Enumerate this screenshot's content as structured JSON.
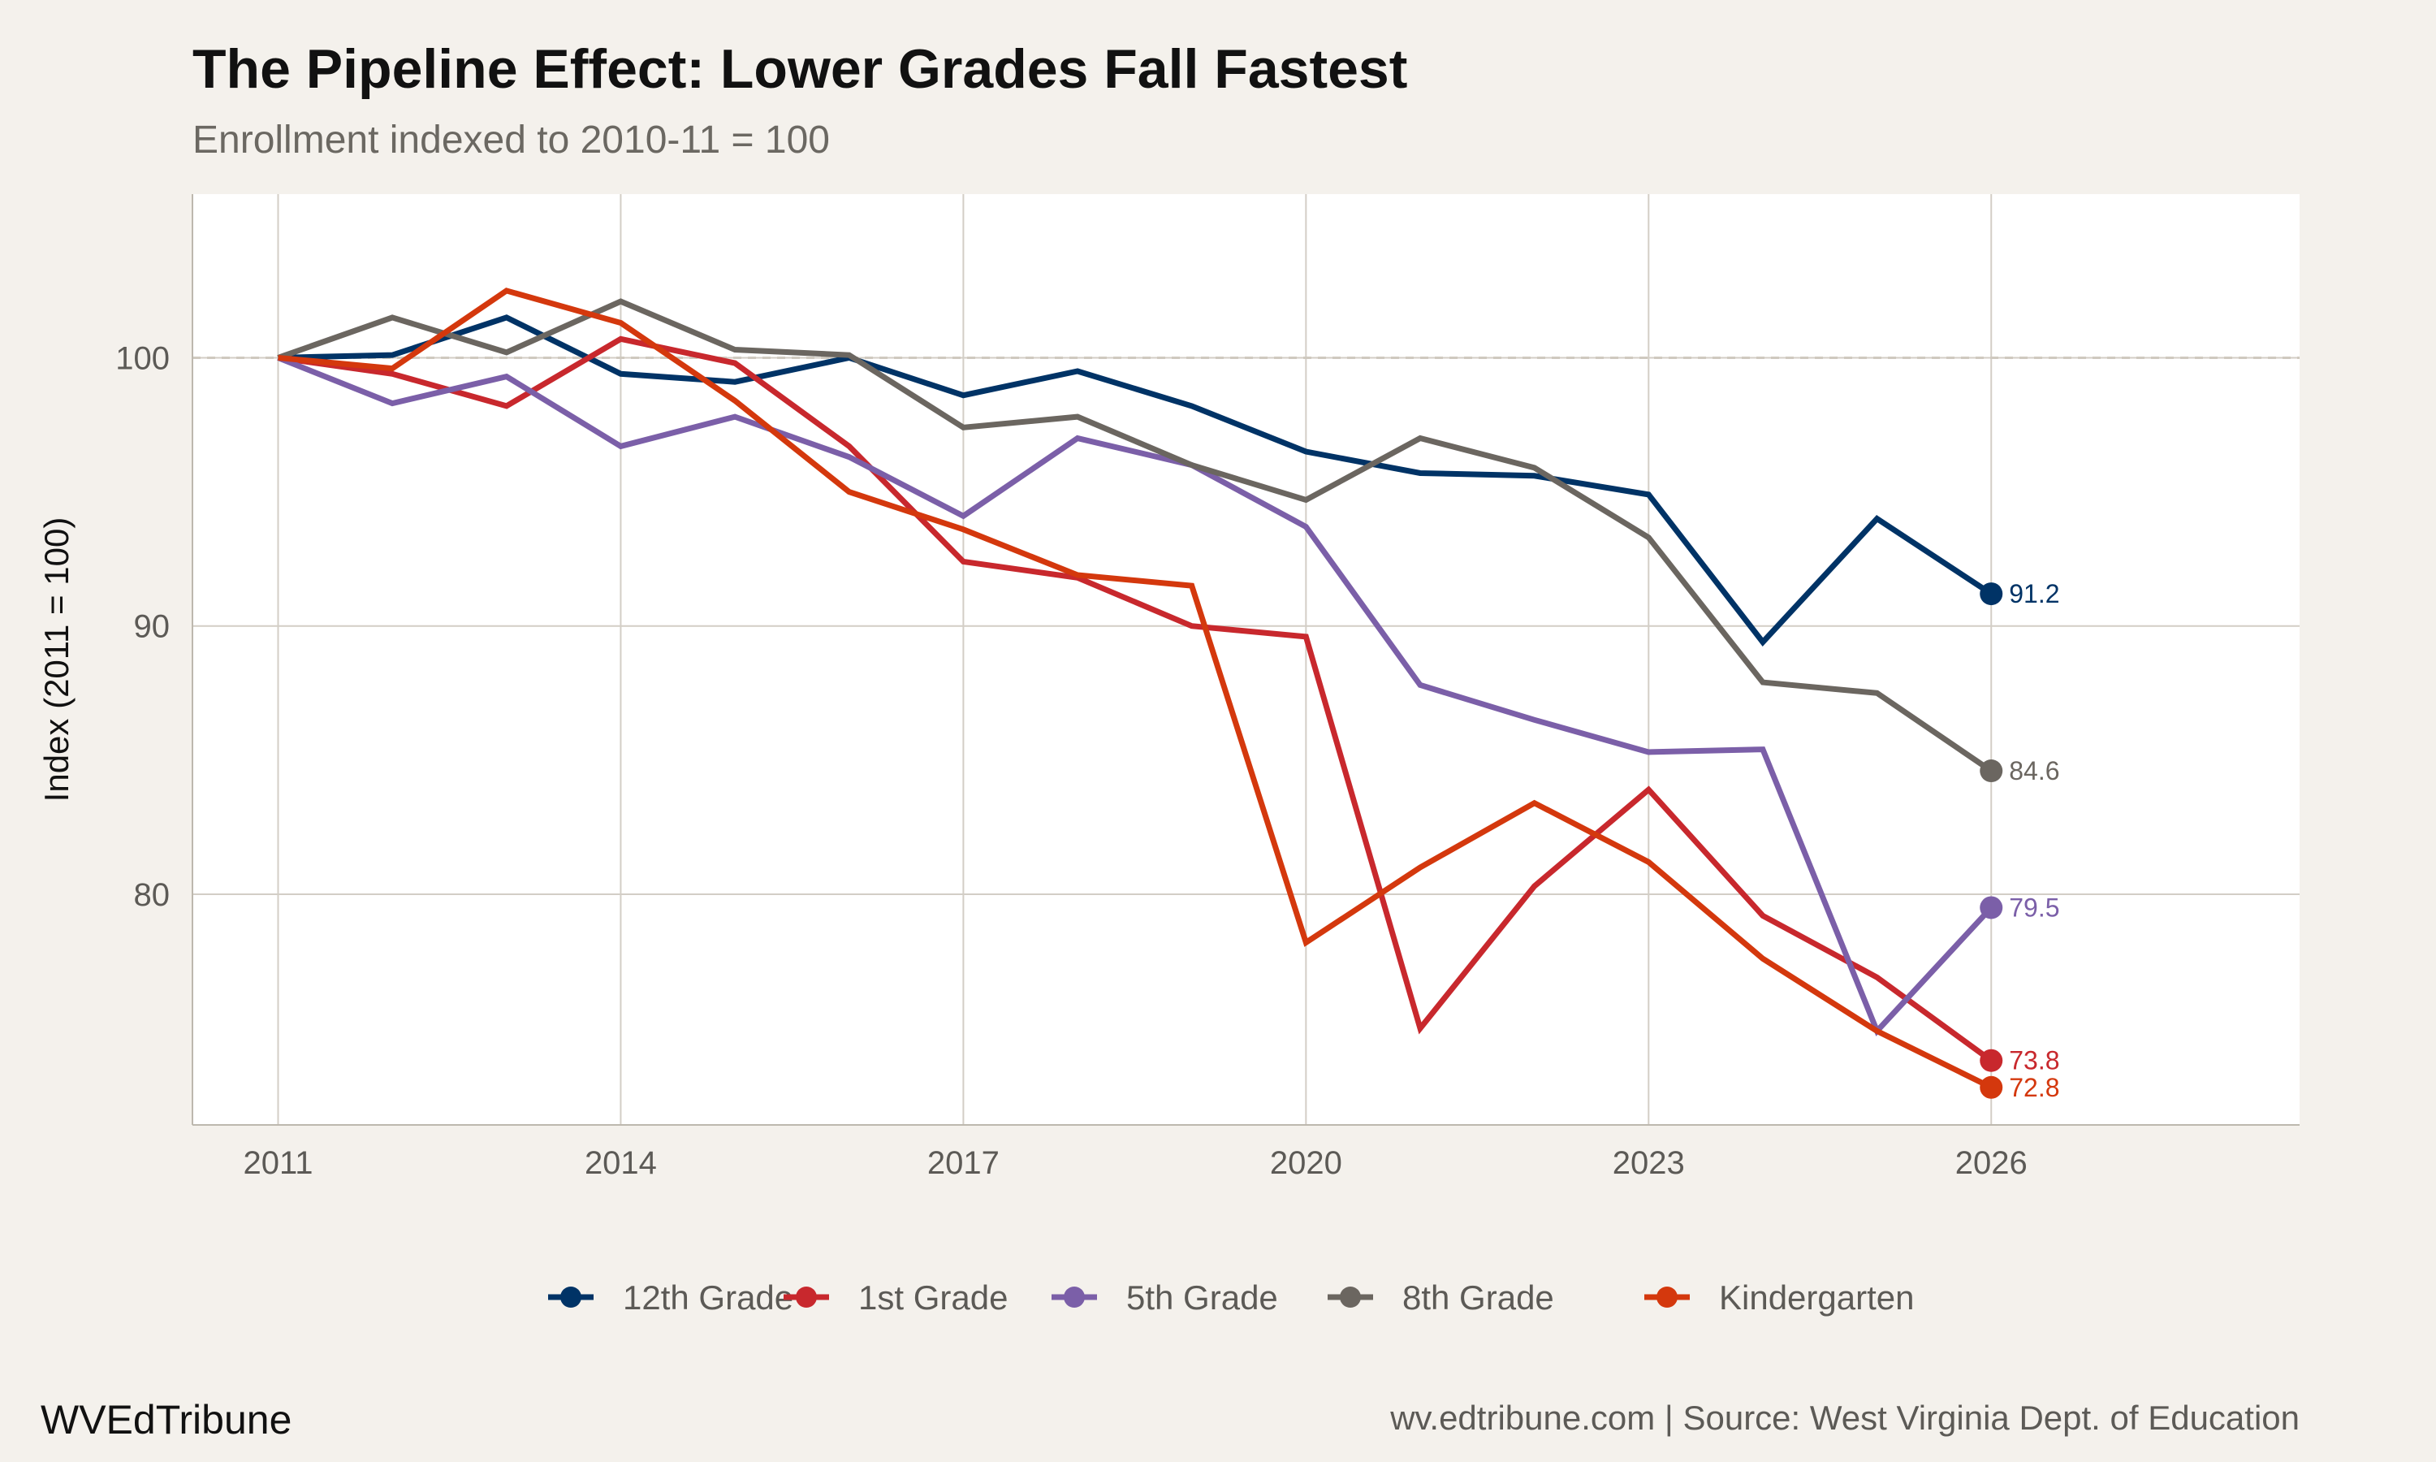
{
  "chart_data": {
    "type": "line",
    "title": "The Pipeline Effect: Lower Grades Fall Fastest",
    "subtitle": "Enrollment indexed to 2010-11 = 100",
    "xlabel": "",
    "ylabel": "Index (2011 = 100)",
    "xlim": [
      2010.25,
      2028.7
    ],
    "ylim": [
      71.4,
      106.1
    ],
    "xticks": [
      2011,
      2014,
      2017,
      2020,
      2023,
      2026
    ],
    "yticks": [
      80,
      90,
      100
    ],
    "grid": true,
    "reference_line": 100,
    "legend_position": "bottom",
    "x": [
      2011,
      2012,
      2013,
      2014,
      2015,
      2016,
      2017,
      2018,
      2019,
      2020,
      2021,
      2022,
      2023,
      2024,
      2025,
      2026
    ],
    "series": [
      {
        "name": "12th Grade",
        "color": "#003366",
        "end_label": "91.2",
        "values": [
          100,
          100.1,
          101.5,
          99.4,
          99.1,
          100,
          98.6,
          99.5,
          98.2,
          96.5,
          95.7,
          95.6,
          94.9,
          89.4,
          94.0,
          91.2
        ]
      },
      {
        "name": "1st Grade",
        "color": "#c8282d",
        "end_label": "73.8",
        "values": [
          100,
          99.4,
          98.2,
          100.7,
          99.8,
          96.7,
          92.4,
          91.8,
          90.0,
          89.6,
          75.0,
          80.3,
          83.9,
          79.2,
          76.9,
          73.8
        ]
      },
      {
        "name": "5th Grade",
        "color": "#7b5fa8",
        "end_label": "79.5",
        "values": [
          100,
          98.3,
          99.3,
          96.7,
          97.8,
          96.3,
          94.1,
          97.0,
          96.0,
          93.7,
          87.8,
          86.5,
          85.3,
          85.4,
          74.9,
          79.5
        ]
      },
      {
        "name": "8th Grade",
        "color": "#6b6660",
        "end_label": "84.6",
        "values": [
          100,
          101.5,
          100.2,
          102.1,
          100.3,
          100.1,
          97.4,
          97.8,
          96.0,
          94.7,
          97.0,
          95.9,
          93.3,
          87.9,
          87.5,
          84.6
        ]
      },
      {
        "name": "Kindergarten",
        "color": "#d4380d",
        "end_label": "72.8",
        "values": [
          100,
          99.6,
          102.5,
          101.3,
          98.4,
          95.0,
          93.6,
          91.9,
          91.5,
          78.2,
          81.0,
          83.4,
          81.2,
          77.6,
          74.9,
          72.8
        ]
      }
    ]
  },
  "footer": {
    "brand": "WVEdTribune",
    "source": "wv.edtribune.com | Source: West Virginia Dept. of Education"
  }
}
